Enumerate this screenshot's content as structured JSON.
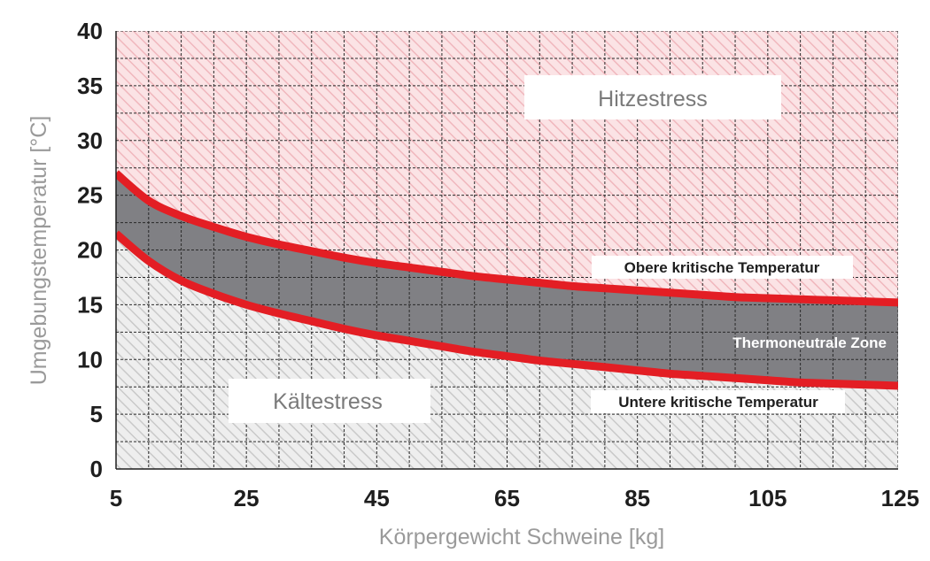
{
  "chart_data": {
    "type": "area",
    "xlabel": "Körpergewicht Schweine [kg]",
    "ylabel": "Umgebungstemperatur [°C]",
    "xlim": [
      5,
      125
    ],
    "ylim": [
      0,
      40
    ],
    "x_ticks": [
      5,
      25,
      45,
      65,
      85,
      105,
      125
    ],
    "y_ticks": [
      0,
      5,
      10,
      15,
      20,
      25,
      30,
      35,
      40
    ],
    "grid": true,
    "x": [
      5,
      10,
      15,
      20,
      25,
      30,
      35,
      40,
      45,
      50,
      55,
      60,
      65,
      70,
      75,
      80,
      85,
      90,
      95,
      100,
      105,
      110,
      115,
      120,
      125
    ],
    "series": [
      {
        "name": "Obere kritische Temperatur",
        "color": "#e31e24",
        "values": [
          27.0,
          24.5,
          23.1,
          22.1,
          21.2,
          20.5,
          19.9,
          19.3,
          18.8,
          18.4,
          18.0,
          17.6,
          17.3,
          17.0,
          16.7,
          16.5,
          16.3,
          16.1,
          15.9,
          15.7,
          15.6,
          15.5,
          15.4,
          15.3,
          15.2
        ]
      },
      {
        "name": "Untere kritische Temperatur",
        "color": "#e31e24",
        "values": [
          21.5,
          19.0,
          17.2,
          16.0,
          15.0,
          14.2,
          13.5,
          12.8,
          12.2,
          11.7,
          11.2,
          10.7,
          10.3,
          9.9,
          9.6,
          9.3,
          9.0,
          8.7,
          8.5,
          8.3,
          8.1,
          7.9,
          7.8,
          7.7,
          7.6
        ]
      }
    ],
    "regions": [
      {
        "name": "Hitzestress",
        "color": "#f7d4d8"
      },
      {
        "name": "Thermoneutrale Zone",
        "color": "#808084"
      },
      {
        "name": "Kältestress",
        "color": "#d8d8d8"
      }
    ],
    "annotations": {
      "upper_curve": "Obere kritische Temperatur",
      "lower_curve": "Untere kritische Temperatur",
      "band": "Thermoneutrale Zone",
      "heat_zone": "Hitzestress",
      "cold_zone": "Kältestress"
    }
  }
}
